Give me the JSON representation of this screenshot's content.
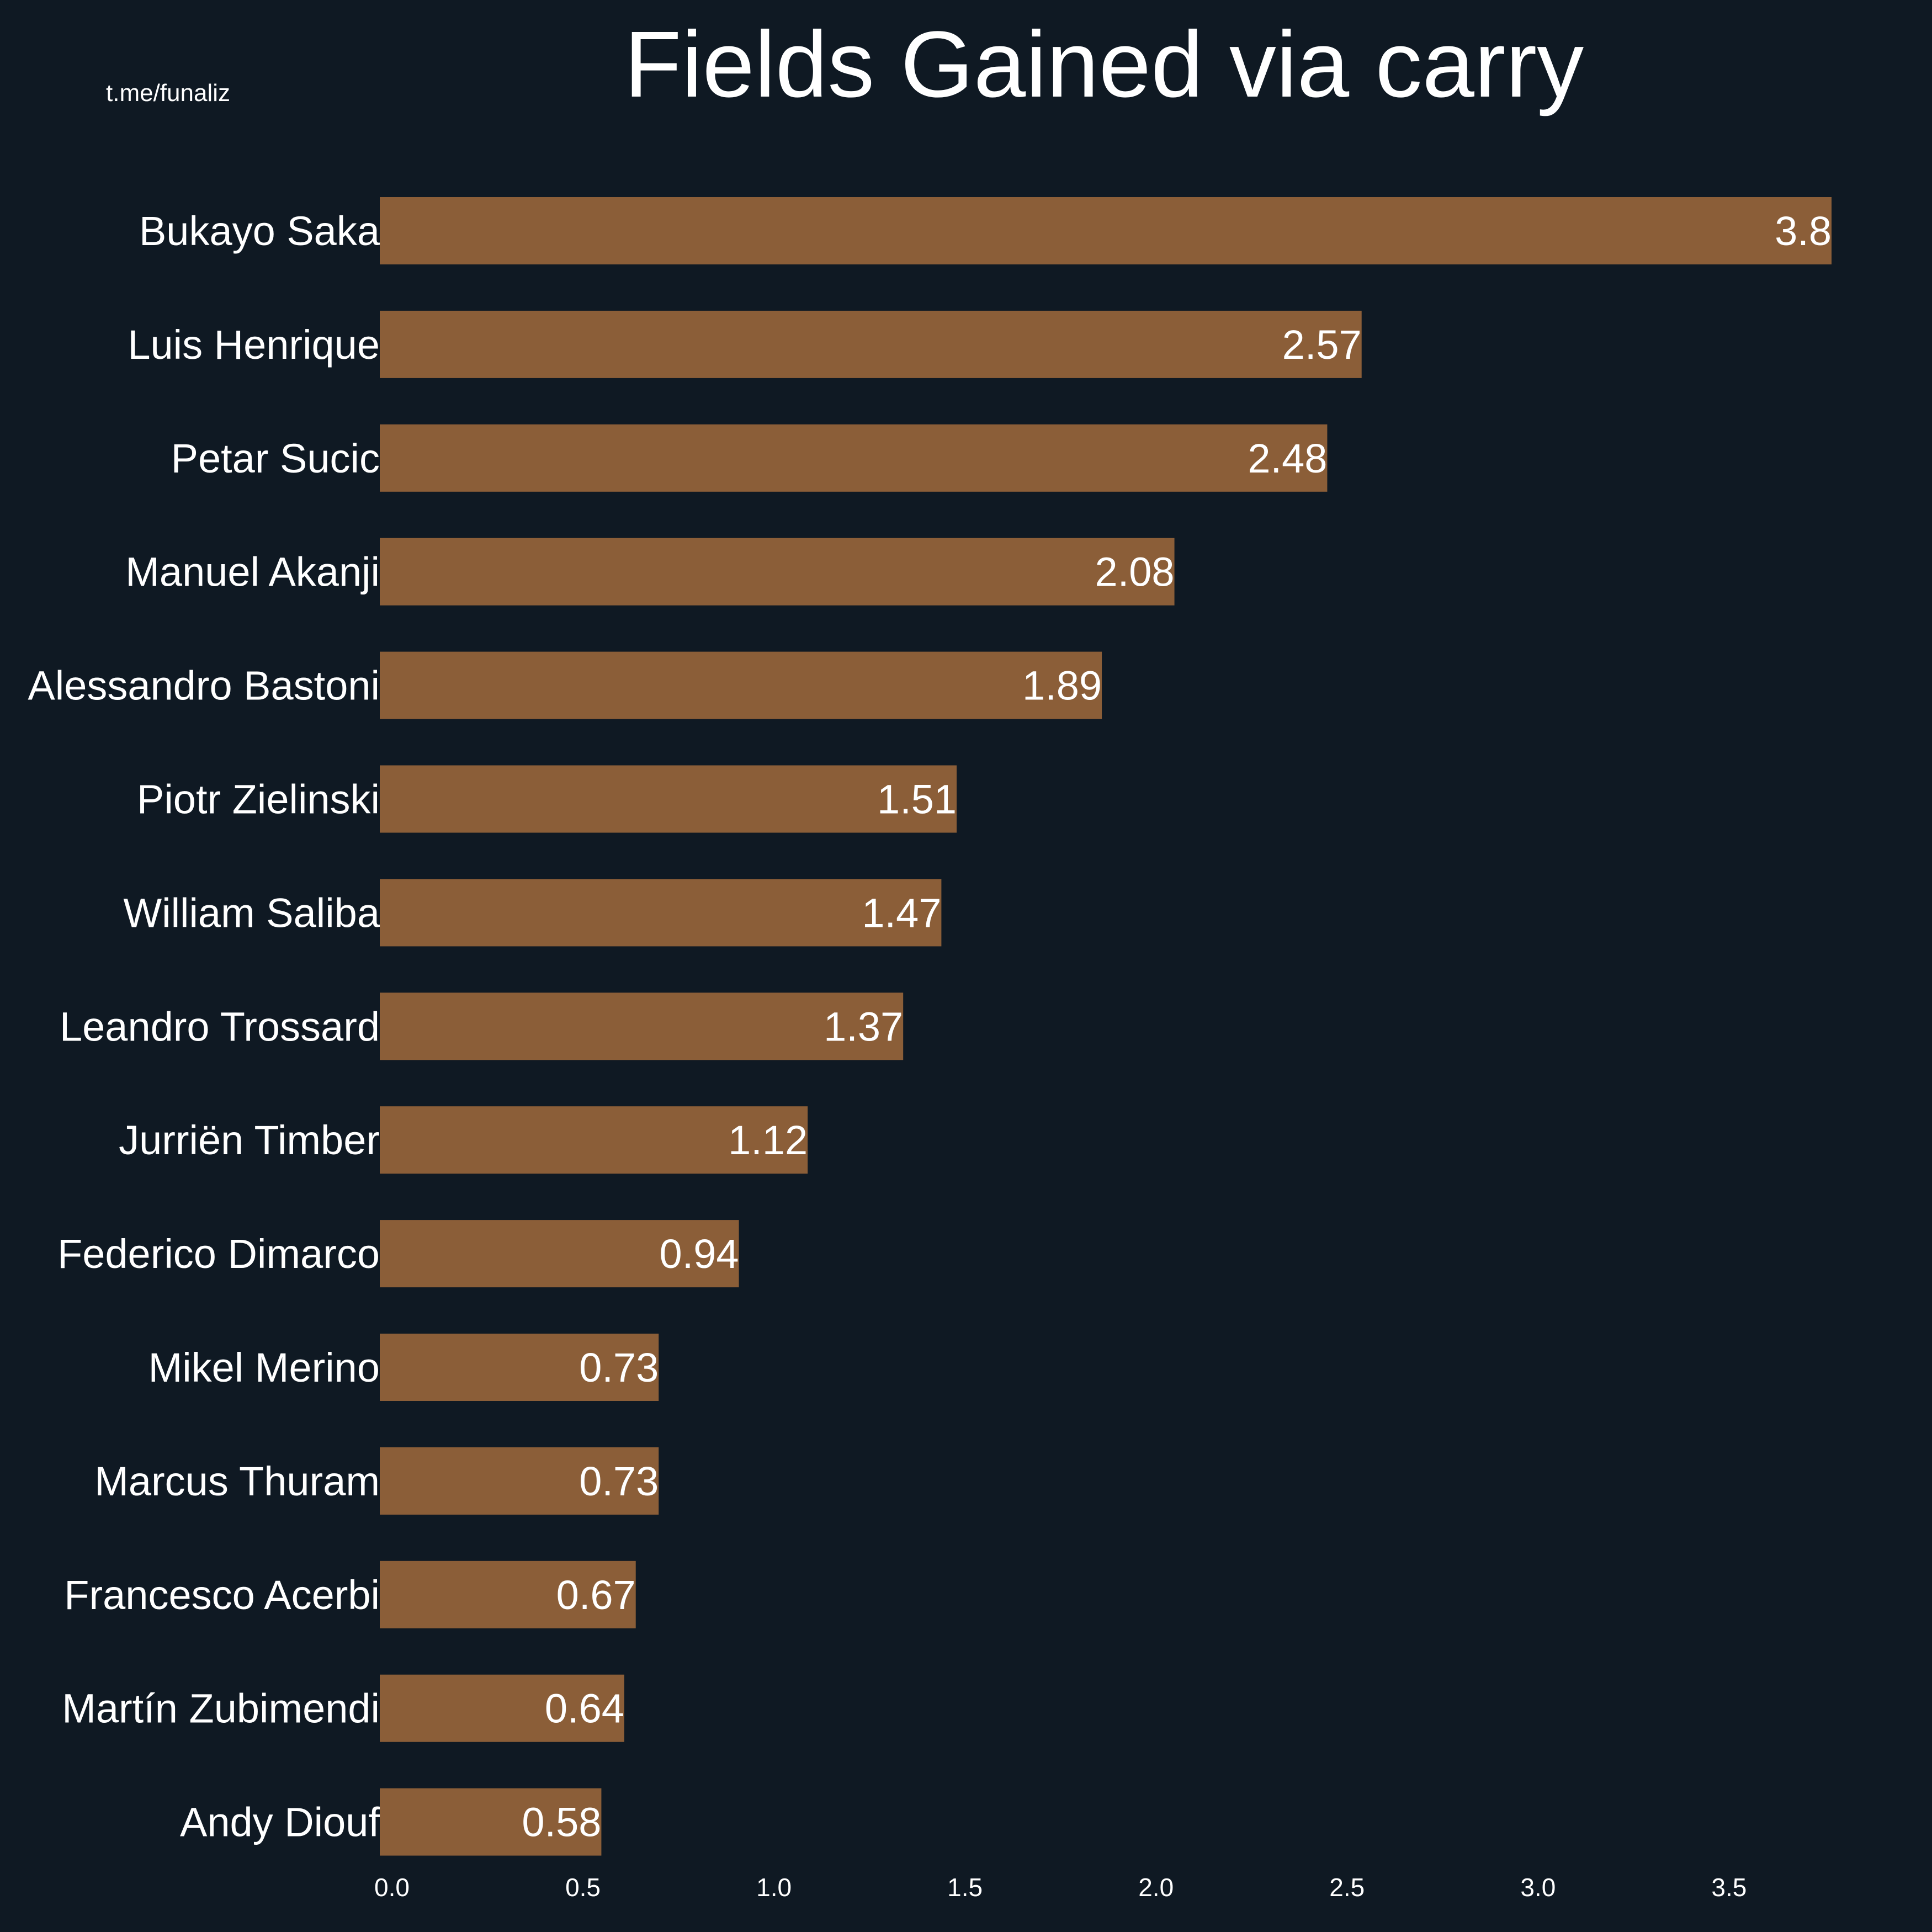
{
  "colors": {
    "background": "#0f1923",
    "bar": "#8b5e38",
    "text": "#ffffff"
  },
  "watermark": "t.me/funaliz",
  "chart_data": {
    "type": "bar",
    "orientation": "horizontal",
    "title": "Fields Gained via carry",
    "xlabel": "",
    "ylabel": "",
    "categories": [
      "Bukayo Saka",
      "Luis Henrique",
      "Petar Sucic",
      "Manuel Akanji",
      "Alessandro Bastoni",
      "Piotr Zielinski",
      "William Saliba",
      "Leandro Trossard",
      "Jurriën Timber",
      "Federico Dimarco",
      "Mikel Merino",
      "Marcus Thuram",
      "Francesco Acerbi",
      "Martín Zubimendi",
      "Andy Diouf"
    ],
    "values": [
      3.8,
      2.57,
      2.48,
      2.08,
      1.89,
      1.51,
      1.47,
      1.37,
      1.12,
      0.94,
      0.73,
      0.73,
      0.67,
      0.64,
      0.58
    ],
    "value_labels": [
      "3.8",
      "2.57",
      "2.48",
      "2.08",
      "1.89",
      "1.51",
      "1.47",
      "1.37",
      "1.12",
      "0.94",
      "0.73",
      "0.73",
      "0.67",
      "0.64",
      "0.58"
    ],
    "xticks": [
      "0.0",
      "0.5",
      "1.0",
      "1.5",
      "2.0",
      "2.5",
      "3.0",
      "3.5"
    ],
    "xlim": [
      0,
      3.8
    ],
    "grid": false,
    "legend": "none"
  }
}
